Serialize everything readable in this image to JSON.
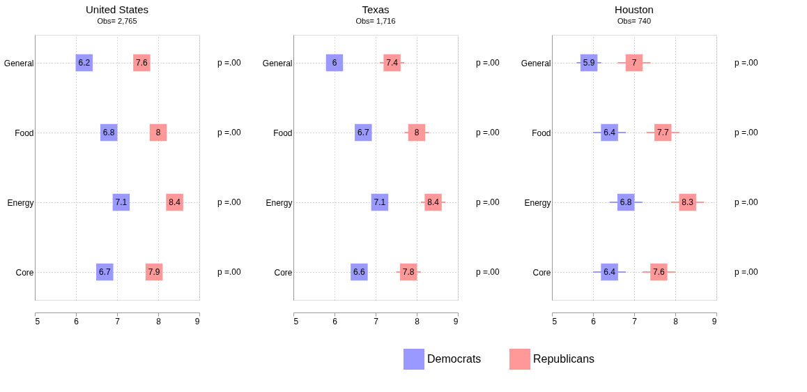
{
  "chart_data": [
    {
      "type": "scatter",
      "orientation": "horizontal",
      "title": "United States",
      "subtitle": "Obs= 2,765",
      "categories": [
        "General",
        "Food",
        "Energy",
        "Core"
      ],
      "xlim": [
        5,
        9
      ],
      "xticks": [
        5,
        6,
        7,
        8,
        9
      ],
      "grid": true,
      "marker": "square",
      "data_labels": true,
      "legend": "bottom",
      "series": [
        {
          "name": "Democrats",
          "color": "#9999ff",
          "values": [
            6.2,
            6.8,
            7.1,
            6.7
          ],
          "errors": [
            0.1,
            0.1,
            0.1,
            0.1
          ]
        },
        {
          "name": "Republicans",
          "color": "#ff9999",
          "values": [
            7.6,
            8,
            8.4,
            7.9
          ],
          "errors": [
            0.1,
            0.1,
            0.1,
            0.1
          ]
        }
      ],
      "annotations": [
        "p =.00",
        "p =.00",
        "p =.00",
        "p =.00"
      ]
    },
    {
      "type": "scatter",
      "orientation": "horizontal",
      "title": "Texas",
      "subtitle": "Obs= 1,716",
      "categories": [
        "General",
        "Food",
        "Energy",
        "Core"
      ],
      "xlim": [
        5,
        9
      ],
      "xticks": [
        5,
        6,
        7,
        8,
        9
      ],
      "grid": true,
      "marker": "square",
      "data_labels": true,
      "legend": "bottom",
      "series": [
        {
          "name": "Democrats",
          "color": "#9999ff",
          "values": [
            6,
            6.7,
            7.1,
            6.6
          ],
          "errors": [
            0.2,
            0.2,
            0.2,
            0.2
          ]
        },
        {
          "name": "Republicans",
          "color": "#ff9999",
          "values": [
            7.4,
            8,
            8.4,
            7.8
          ],
          "errors": [
            0.3,
            0.3,
            0.3,
            0.3
          ]
        }
      ],
      "annotations": [
        "p =.00",
        "p =.00",
        "p =.00",
        "p =.00"
      ]
    },
    {
      "type": "scatter",
      "orientation": "horizontal",
      "title": "Houston",
      "subtitle": "Obs= 740",
      "categories": [
        "General",
        "Food",
        "Energy",
        "Core"
      ],
      "xlim": [
        5,
        9
      ],
      "xticks": [
        5,
        6,
        7,
        8,
        9
      ],
      "grid": true,
      "marker": "square",
      "data_labels": true,
      "legend": "bottom",
      "series": [
        {
          "name": "Democrats",
          "color": "#9999ff",
          "values": [
            5.9,
            6.4,
            6.8,
            6.4
          ],
          "errors": [
            0.3,
            0.4,
            0.4,
            0.4
          ]
        },
        {
          "name": "Republicans",
          "color": "#ff9999",
          "values": [
            7,
            7.7,
            8.3,
            7.6
          ],
          "errors": [
            0.4,
            0.4,
            0.4,
            0.4
          ]
        }
      ],
      "annotations": [
        "p =.00",
        "p =.00",
        "p =.00",
        "p =.00"
      ]
    }
  ]
}
